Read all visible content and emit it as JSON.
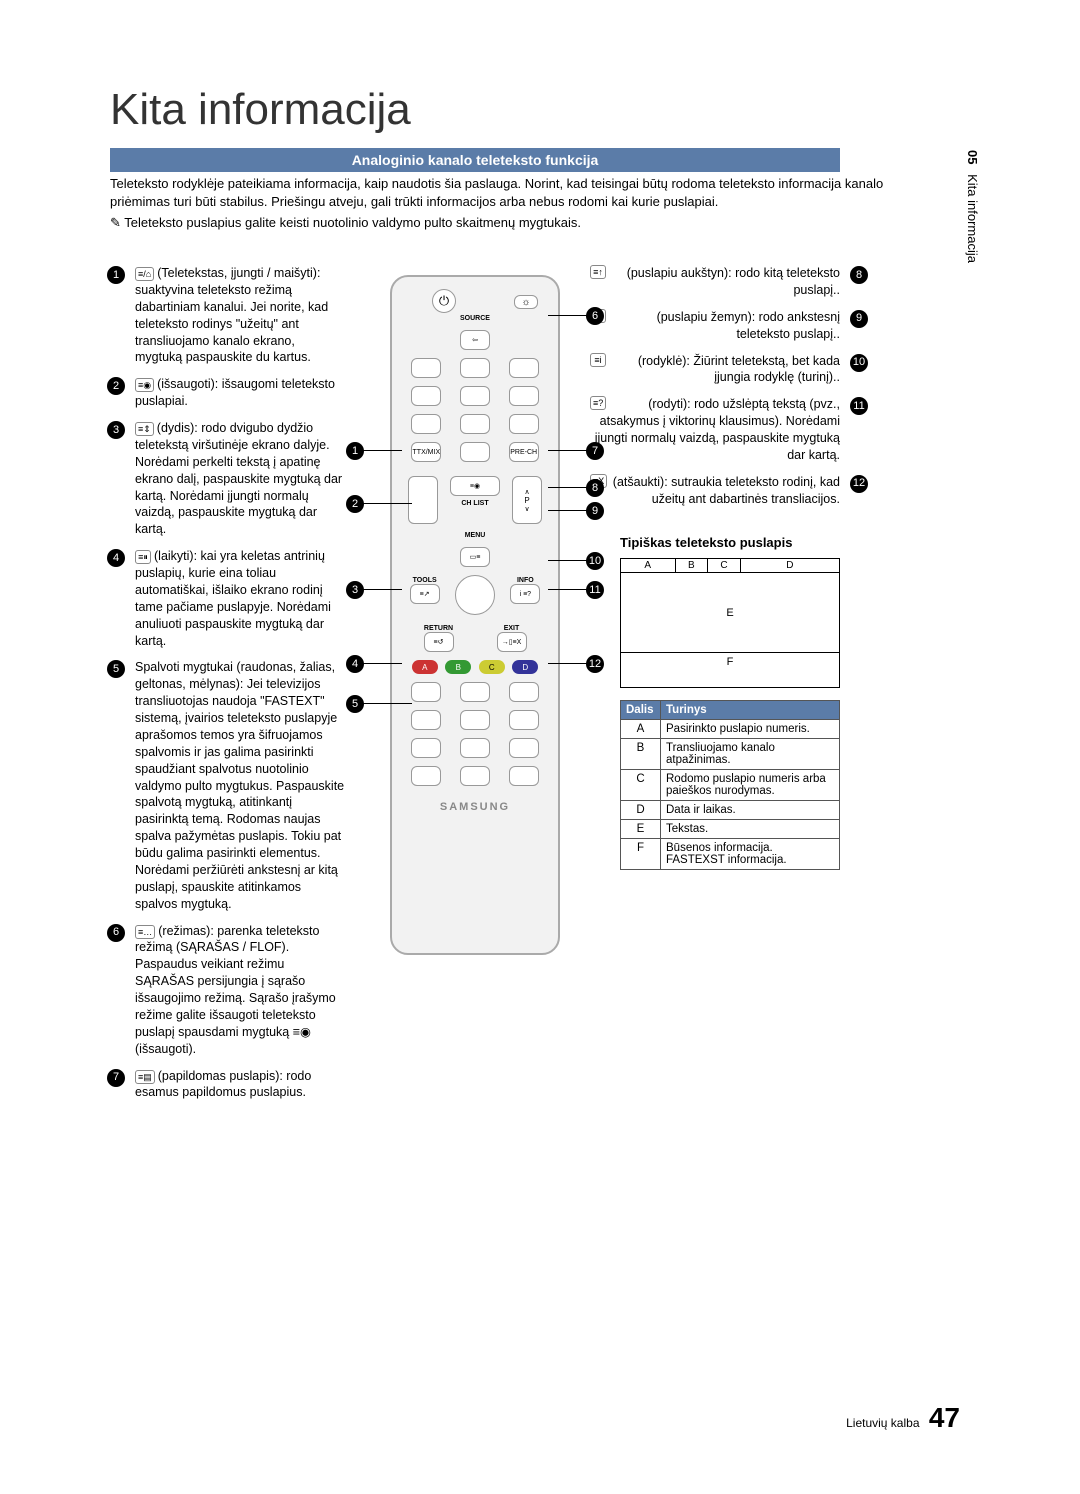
{
  "title": "Kita informacija",
  "section_bar": "Analoginio kanalo teleteksto funkcija",
  "intro": "Teleteksto rodyklėje pateikiama informacija, kaip naudotis šia paslauga. Norint, kad teisingai būtų rodoma teleteksto informacija kanalo priėmimas turi būti stabilus. Priešingu atveju, gali trūkti informacijos arba nebus rodomi kai kurie puslapiai.",
  "note": "Teleteksto puslapius galite keisti nuotolinio valdymo pulto skaitmenų mygtukais.",
  "side_tab": {
    "num": "05",
    "label": "Kita informacija"
  },
  "left_items": [
    {
      "n": "1",
      "icon": "≡/⌂",
      "text": "(Teletekstas, įjungti / maišyti): suaktyvina teleteksto režimą dabartiniam kanalui. Jei norite, kad teleteksto rodinys \"užeitų\" ant transliuojamo kanalo ekrano, mygtuką paspauskite du kartus."
    },
    {
      "n": "2",
      "icon": "≡◉",
      "text": "(išsaugoti): išsaugomi teleteksto puslapiai."
    },
    {
      "n": "3",
      "icon": "≡⇕",
      "text": "(dydis): rodo dvigubo dydžio teletekstą viršutinėje ekrano dalyje. Norėdami perkelti tekstą į apatinę ekrano dalį, paspauskite mygtuką dar kartą. Norėdami įjungti normalų vaizdą, paspauskite mygtuką dar kartą."
    },
    {
      "n": "4",
      "icon": "≡⏸",
      "text": "(laikyti): kai yra keletas antrinių puslapių, kurie eina toliau automatiškai, išlaiko ekrano rodinį tame pačiame puslapyje. Norėdami anuliuoti paspauskite mygtuką dar kartą."
    },
    {
      "n": "5",
      "icon": "",
      "text": "Spalvoti mygtukai (raudonas, žalias, geltonas, mėlynas): Jei televizijos transliuotojas naudoja \"FASTEXT\" sistemą, įvairios teleteksto puslapyje aprašomos temos yra šifruojamos spalvomis ir jas galima pasirinkti spaudžiant spalvotus nuotolinio valdymo pulto mygtukus. Paspauskite spalvotą mygtuką, atitinkantį pasirinktą temą. Rodomas naujas spalva pažymėtas puslapis. Tokiu pat būdu galima pasirinkti elementus. Norėdami peržiūrėti ankstesnį ar kitą puslapį, spauskite atitinkamos spalvos mygtuką."
    },
    {
      "n": "6",
      "icon": "≡…",
      "text": "(režimas): parenka teleteksto režimą (SĄRAŠAS / FLOF). Paspaudus veikiant režimu SĄRAŠAS persijungia į sąrašo išsaugojimo režimą. Sąrašo įrašymo režime galite išsaugoti teleteksto puslapį spausdami mygtuką ≡◉ (išsaugoti)."
    },
    {
      "n": "7",
      "icon": "≡▤",
      "text": "(papildomas puslapis): rodo esamus papildomus puslapius."
    }
  ],
  "right_items": [
    {
      "n": "8",
      "icon": "≡↑",
      "text": "(puslapiu aukštyn): rodo kitą teleteksto puslapį.."
    },
    {
      "n": "9",
      "icon": "↓≡",
      "text": "(puslapiu žemyn): rodo ankstesnį teleteksto puslapį.."
    },
    {
      "n": "10",
      "icon": "≡i",
      "text": "(rodyklė): Žiūrint teletekstą, bet kada įjungia rodyklę (turinį).."
    },
    {
      "n": "11",
      "icon": "≡?",
      "text": "(rodyti): rodo užslėptą tekstą (pvz., atsakymus į viktorinų klausimus). Norėdami įjungti normalų vaizdą, paspauskite mygtuką dar kartą."
    },
    {
      "n": "12",
      "icon": "≡X",
      "text": "(atšaukti): sutraukia teleteksto rodinį, kad užeitų ant dabartinės transliacijos."
    }
  ],
  "remote": {
    "source": "SOURCE",
    "ttxmix": "TTX/MIX",
    "prech": "PRE-CH",
    "chlist": "CH LIST",
    "menu": "MENU",
    "tools": "TOOLS",
    "info": "INFO",
    "return": "RETURN",
    "exit": "EXIT",
    "brand": "SAMSUNG",
    "color_a": "A",
    "color_b": "B",
    "color_c": "C",
    "color_d": "D"
  },
  "typical": {
    "title": "Tipiškas teleteksto puslapis",
    "a": "A",
    "b": "B",
    "c": "C",
    "d": "D",
    "e": "E",
    "f": "F"
  },
  "table": {
    "h1": "Dalis",
    "h2": "Turinys",
    "rows": [
      {
        "p": "A",
        "t": "Pasirinkto puslapio numeris."
      },
      {
        "p": "B",
        "t": "Transliuojamo kanalo atpažinimas."
      },
      {
        "p": "C",
        "t": "Rodomo puslapio numeris arba paieškos nurodymas."
      },
      {
        "p": "D",
        "t": "Data ir laikas."
      },
      {
        "p": "E",
        "t": "Tekstas."
      },
      {
        "p": "F",
        "t": "Būsenos informacija. FASTEXST informacija."
      }
    ]
  },
  "footer": {
    "lang": "Lietuvių kalba",
    "page": "47"
  }
}
